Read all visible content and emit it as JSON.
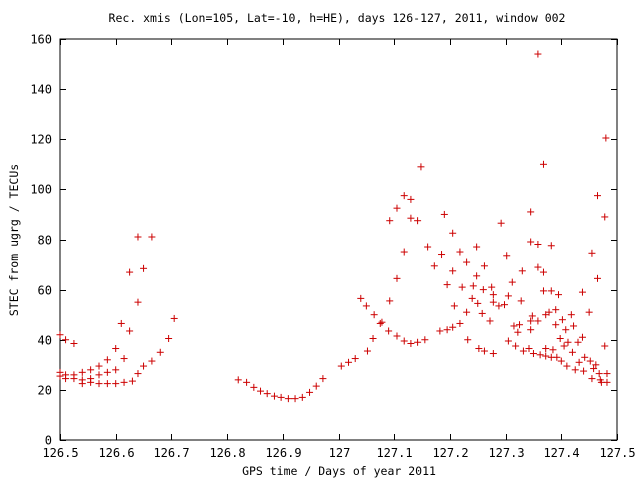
{
  "chart_data": {
    "type": "scatter",
    "title": "Rec. xmis (Lon=105, Lat=-10, h=HE), days 126-127, 2011, window 002",
    "xlabel": "GPS time / Days of year 2011",
    "ylabel": "STEC from ugrg / TECUs",
    "xlim": [
      126.5,
      127.5
    ],
    "ylim": [
      0,
      160
    ],
    "xticks": [
      126.5,
      126.6,
      126.7,
      126.8,
      126.9,
      127.0,
      127.1,
      127.2,
      127.3,
      127.4,
      127.5
    ],
    "xtick_labels": [
      "126.5",
      "126.6",
      "126.7",
      "126.8",
      "126.9",
      "127",
      "127.1",
      "127.2",
      "127.3",
      "127.4",
      "127.5"
    ],
    "yticks": [
      0,
      20,
      40,
      60,
      80,
      100,
      120,
      140,
      160
    ],
    "ytick_labels": [
      "0",
      "20",
      "40",
      "60",
      "80",
      "100",
      "120",
      "140",
      "160"
    ],
    "grid": false,
    "marker": "+",
    "marker_color": "#cc0000",
    "series": [
      {
        "points": [
          [
            126.5,
            42.0
          ],
          [
            126.51,
            40.0
          ],
          [
            126.525,
            38.5
          ],
          [
            126.5,
            27.0
          ],
          [
            126.51,
            26.0
          ],
          [
            126.525,
            26.0
          ],
          [
            126.54,
            27.0
          ],
          [
            126.555,
            28.0
          ],
          [
            126.57,
            29.5
          ],
          [
            126.5,
            25.5
          ],
          [
            126.51,
            24.5
          ],
          [
            126.525,
            24.5
          ],
          [
            126.54,
            24.0
          ],
          [
            126.555,
            24.5
          ],
          [
            126.57,
            26.0
          ],
          [
            126.585,
            27.0
          ],
          [
            126.6,
            28.0
          ],
          [
            126.54,
            22.5
          ],
          [
            126.555,
            23.0
          ],
          [
            126.57,
            22.5
          ],
          [
            126.585,
            22.5
          ],
          [
            126.6,
            22.5
          ],
          [
            126.615,
            23.0
          ],
          [
            126.63,
            23.5
          ],
          [
            126.585,
            32.0
          ],
          [
            126.6,
            36.5
          ],
          [
            126.61,
            46.5
          ],
          [
            126.615,
            32.5
          ],
          [
            126.625,
            43.5
          ],
          [
            126.625,
            67.0
          ],
          [
            126.64,
            55.0
          ],
          [
            126.64,
            81.0
          ],
          [
            126.65,
            68.5
          ],
          [
            126.665,
            81.0
          ],
          [
            126.64,
            26.5
          ],
          [
            126.65,
            29.5
          ],
          [
            126.665,
            31.5
          ],
          [
            126.68,
            35.0
          ],
          [
            126.695,
            40.5
          ],
          [
            126.705,
            48.5
          ],
          [
            126.82,
            24.0
          ],
          [
            126.835,
            23.0
          ],
          [
            126.848,
            21.0
          ],
          [
            126.86,
            19.5
          ],
          [
            126.872,
            18.5
          ],
          [
            126.885,
            17.5
          ],
          [
            126.897,
            17.0
          ],
          [
            126.91,
            16.5
          ],
          [
            126.922,
            16.5
          ],
          [
            126.935,
            17.0
          ],
          [
            126.948,
            19.0
          ],
          [
            126.96,
            21.5
          ],
          [
            126.972,
            24.5
          ],
          [
            127.005,
            29.5
          ],
          [
            127.018,
            31.0
          ],
          [
            127.03,
            32.5
          ],
          [
            127.04,
            56.5
          ],
          [
            127.05,
            53.5
          ],
          [
            127.052,
            35.5
          ],
          [
            127.062,
            40.5
          ],
          [
            127.064,
            50.0
          ],
          [
            127.075,
            46.5
          ],
          [
            127.078,
            47.0
          ],
          [
            127.09,
            43.5
          ],
          [
            127.092,
            55.5
          ],
          [
            127.092,
            87.5
          ],
          [
            127.105,
            92.5
          ],
          [
            127.105,
            64.5
          ],
          [
            127.105,
            41.5
          ],
          [
            127.118,
            97.5
          ],
          [
            127.118,
            75.0
          ],
          [
            127.118,
            39.5
          ],
          [
            127.13,
            96.0
          ],
          [
            127.13,
            88.5
          ],
          [
            127.13,
            38.5
          ],
          [
            127.142,
            87.5
          ],
          [
            127.148,
            109.0
          ],
          [
            127.142,
            39.0
          ],
          [
            127.155,
            40.0
          ],
          [
            127.16,
            77.0
          ],
          [
            127.172,
            69.5
          ],
          [
            127.182,
            43.5
          ],
          [
            127.185,
            74.0
          ],
          [
            127.19,
            90.0
          ],
          [
            127.195,
            44.0
          ],
          [
            127.195,
            62.0
          ],
          [
            127.205,
            82.5
          ],
          [
            127.205,
            67.5
          ],
          [
            127.205,
            45.0
          ],
          [
            127.208,
            53.5
          ],
          [
            127.218,
            75.0
          ],
          [
            127.218,
            46.5
          ],
          [
            127.222,
            61.0
          ],
          [
            127.23,
            71.0
          ],
          [
            127.23,
            51.0
          ],
          [
            127.232,
            40.0
          ],
          [
            127.24,
            56.5
          ],
          [
            127.242,
            61.5
          ],
          [
            127.248,
            77.0
          ],
          [
            127.248,
            65.5
          ],
          [
            127.25,
            54.5
          ],
          [
            127.252,
            36.5
          ],
          [
            127.258,
            50.5
          ],
          [
            127.26,
            60.0
          ],
          [
            127.262,
            69.5
          ],
          [
            127.262,
            35.5
          ],
          [
            127.272,
            47.5
          ],
          [
            127.275,
            61.0
          ],
          [
            127.278,
            58.0
          ],
          [
            127.278,
            55.0
          ],
          [
            127.278,
            34.5
          ],
          [
            127.288,
            53.5
          ],
          [
            127.292,
            86.5
          ],
          [
            127.298,
            54.0
          ],
          [
            127.302,
            73.5
          ],
          [
            127.305,
            57.5
          ],
          [
            127.305,
            39.5
          ],
          [
            127.312,
            63.0
          ],
          [
            127.315,
            45.5
          ],
          [
            127.318,
            37.5
          ],
          [
            127.322,
            43.0
          ],
          [
            127.325,
            46.0
          ],
          [
            127.328,
            55.5
          ],
          [
            127.33,
            67.5
          ],
          [
            127.332,
            35.5
          ],
          [
            127.342,
            36.5
          ],
          [
            127.345,
            91.0
          ],
          [
            127.345,
            79.0
          ],
          [
            127.345,
            47.5
          ],
          [
            127.345,
            44.0
          ],
          [
            127.348,
            49.5
          ],
          [
            127.35,
            34.5
          ],
          [
            127.358,
            154.0
          ],
          [
            127.358,
            78.0
          ],
          [
            127.358,
            69.0
          ],
          [
            127.358,
            47.5
          ],
          [
            127.362,
            34.0
          ],
          [
            127.368,
            110.0
          ],
          [
            127.368,
            67.0
          ],
          [
            127.368,
            59.5
          ],
          [
            127.372,
            50.0
          ],
          [
            127.372,
            36.5
          ],
          [
            127.372,
            33.5
          ],
          [
            127.378,
            51.0
          ],
          [
            127.382,
            77.5
          ],
          [
            127.382,
            59.5
          ],
          [
            127.382,
            33.0
          ],
          [
            127.385,
            36.0
          ],
          [
            127.39,
            52.0
          ],
          [
            127.39,
            46.0
          ],
          [
            127.392,
            33.0
          ],
          [
            127.395,
            58.0
          ],
          [
            127.398,
            40.5
          ],
          [
            127.4,
            31.5
          ],
          [
            127.402,
            48.0
          ],
          [
            127.405,
            37.5
          ],
          [
            127.408,
            44.0
          ],
          [
            127.41,
            29.5
          ],
          [
            127.412,
            39.0
          ],
          [
            127.418,
            50.0
          ],
          [
            127.42,
            35.0
          ],
          [
            127.422,
            45.5
          ],
          [
            127.425,
            28.0
          ],
          [
            127.43,
            39.0
          ],
          [
            127.432,
            31.0
          ],
          [
            127.438,
            59.0
          ],
          [
            127.438,
            41.0
          ],
          [
            127.44,
            27.5
          ],
          [
            127.442,
            33.0
          ],
          [
            127.45,
            51.0
          ],
          [
            127.452,
            31.5
          ],
          [
            127.455,
            74.5
          ],
          [
            127.455,
            24.5
          ],
          [
            127.458,
            28.5
          ],
          [
            127.462,
            30.0
          ],
          [
            127.465,
            97.5
          ],
          [
            127.465,
            64.5
          ],
          [
            127.468,
            26.5
          ],
          [
            127.47,
            24.0
          ],
          [
            127.472,
            23.0
          ],
          [
            127.478,
            89.0
          ],
          [
            127.478,
            37.5
          ],
          [
            127.48,
            120.5
          ],
          [
            127.482,
            26.5
          ],
          [
            127.482,
            23.0
          ]
        ]
      }
    ]
  }
}
